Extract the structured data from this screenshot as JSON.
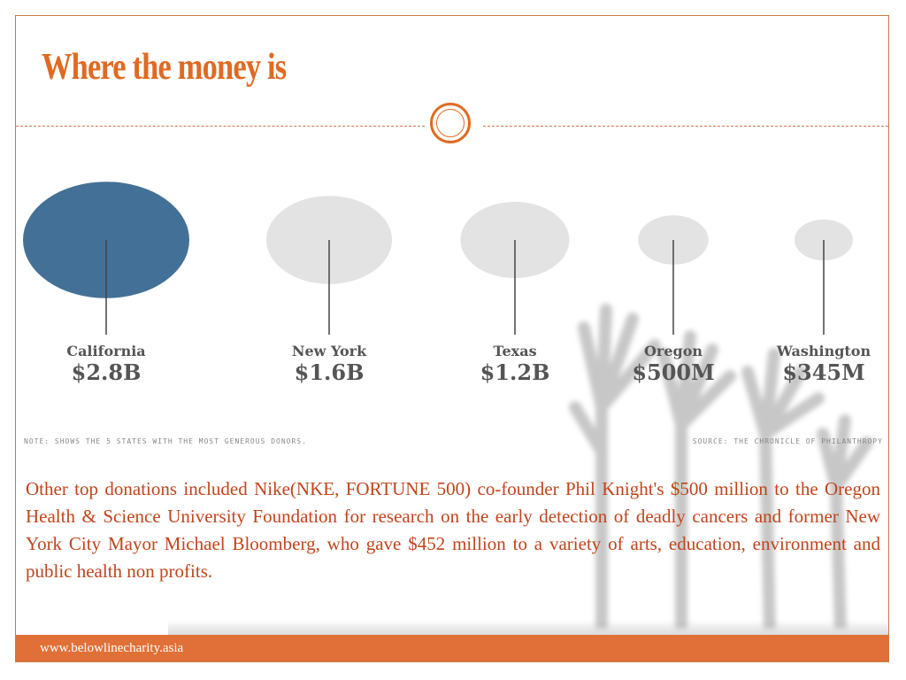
{
  "title": "Where the money is",
  "colors": {
    "accent": "#e06a22",
    "footer": "#e07038",
    "body_text": "#c0451c",
    "highlight_bubble": "#437096",
    "bubble": "#e3e3e3"
  },
  "chart_data": {
    "type": "bubble",
    "title": "",
    "xlabel": "",
    "ylabel": "",
    "categories": [
      "California",
      "New York",
      "Texas",
      "Oregon",
      "Washington"
    ],
    "value_labels": [
      "$2.8B",
      "$1.6B",
      "$1.2B",
      "$500M",
      "$345M"
    ],
    "values": [
      2800,
      1600,
      1200,
      500,
      345
    ],
    "unit": "million USD",
    "highlighted": "California",
    "note": "NOTE: SHOWS THE 5 STATES WITH THE MOST GENEROUS DONORS.",
    "source": "SOURCE: THE CHRONICLE OF PHILANTHROPY"
  },
  "body": {
    "paragraph": "Other top donations included Nike(NKE, FORTUNE 500) co-founder Phil Knight's $500 million to the Oregon Health & Science University Foundation for research on the early detection of deadly cancers and former New York City Mayor Michael Bloomberg, who gave $452 million to a variety of arts, education, environment and public health non profits."
  },
  "footer": {
    "url": "www.belowlinecharity.asia"
  }
}
